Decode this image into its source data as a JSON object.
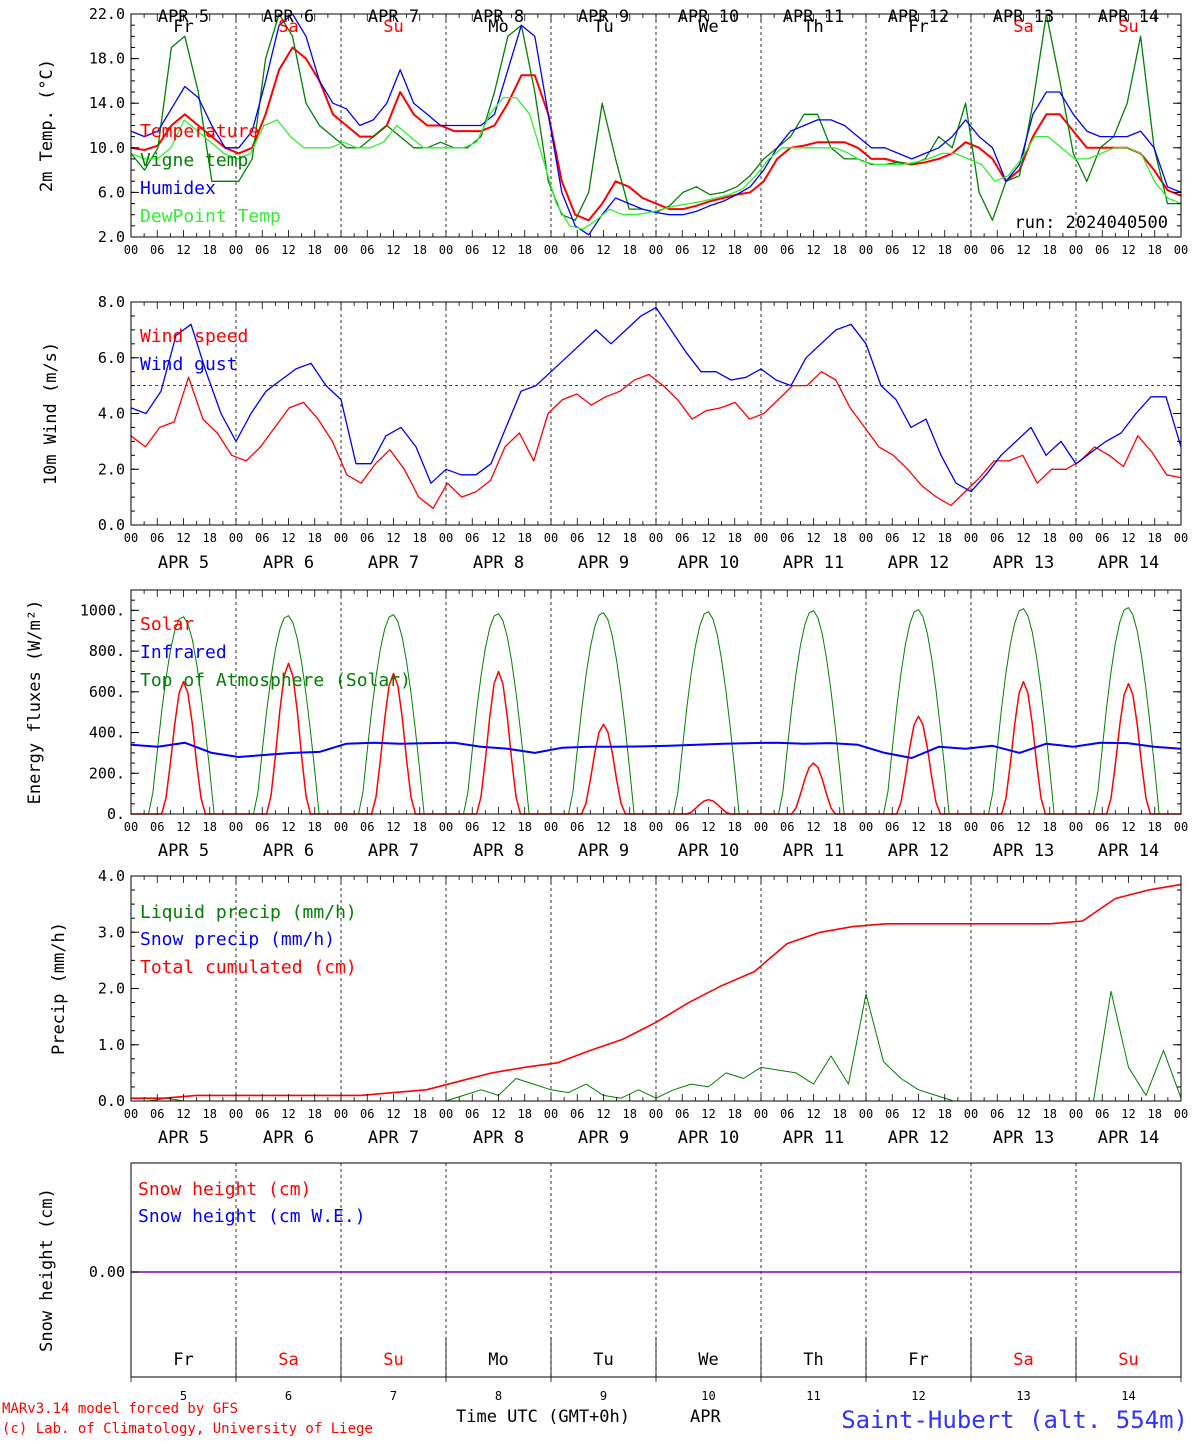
{
  "colors": {
    "axis": "#000000",
    "red": "#ff0000",
    "green": "#008000",
    "blue": "#0000ff",
    "lightgreen": "#33ee33",
    "purple": "#8000c0",
    "station": "#3333ff"
  },
  "days": {
    "names": [
      "Fr",
      "Sa",
      "Su",
      "Mo",
      "Tu",
      "We",
      "Th",
      "Fr",
      "Sa",
      "Su"
    ],
    "name_colors": [
      "axis",
      "red",
      "red",
      "axis",
      "axis",
      "axis",
      "axis",
      "axis",
      "red",
      "red"
    ],
    "dates": [
      "APR  5",
      "APR  6",
      "APR  7",
      "APR  8",
      "APR  9",
      "APR 10",
      "APR 11",
      "APR 12",
      "APR 13",
      "APR 14"
    ],
    "numbers": [
      "5",
      "6",
      "7",
      "8",
      "9",
      "10",
      "11",
      "12",
      "13",
      "14"
    ],
    "hour_labels": [
      "00",
      "06",
      "12",
      "18"
    ],
    "end_label": "00"
  },
  "footer": {
    "model_line": "MARv3.14 model forced by GFS",
    "copyright_line": "(c) Lab. of Climatology, University of Liege",
    "time_axis_label": "Time UTC (GMT+0h)",
    "month_label": "APR",
    "station": "Saint-Hubert (alt. 554m)"
  },
  "chart_data": [
    {
      "type": "line",
      "ylabel": "2m Temp. (°C)",
      "ylim": [
        2,
        22
      ],
      "yticks": [
        2,
        6,
        10,
        14,
        18,
        22
      ],
      "ytick_labels": [
        "2.0",
        "6.0",
        "10.0",
        "14.0",
        "18.0",
        "22.0"
      ],
      "x_unit": "hours since Apr 5 00 UTC (3-hourly)",
      "run_label": "run: 2024040500",
      "series": [
        {
          "name": "Temperature",
          "color": "red",
          "values": [
            10,
            9.8,
            10.2,
            12,
            13,
            12,
            11,
            10,
            9.5,
            10,
            13,
            17,
            19,
            18,
            16,
            13,
            12,
            11,
            11,
            12,
            15,
            13,
            12,
            12,
            11.5,
            11.5,
            11.5,
            12,
            14,
            16.5,
            16.5,
            13,
            7,
            4,
            3.5,
            5,
            7,
            6.5,
            5.5,
            5,
            4.5,
            4.5,
            4.8,
            5.2,
            5.5,
            5.8,
            6,
            7,
            9,
            10,
            10.2,
            10.5,
            10.5,
            10.5,
            10,
            9,
            9,
            8.7,
            8.5,
            8.7,
            9,
            9.5,
            10.5,
            10,
            9,
            7,
            8,
            11,
            13,
            13,
            11.5,
            10,
            10,
            10,
            10,
            9.5,
            8,
            6.2,
            5.7
          ]
        },
        {
          "name": "Vigne temp",
          "color": "green",
          "values": [
            9.5,
            8,
            10,
            19,
            20,
            15,
            7,
            7,
            7,
            9,
            18,
            22,
            20,
            14,
            12,
            11,
            10,
            10,
            11,
            12,
            11,
            10,
            10,
            10.5,
            10,
            10,
            11,
            15,
            20,
            21,
            15,
            7,
            4,
            3.5,
            6,
            14,
            9,
            4.5,
            4.5,
            4.2,
            4.8,
            6,
            6.5,
            5.8,
            6,
            6.5,
            7.5,
            9,
            10,
            11,
            13,
            13,
            10,
            9,
            9,
            8.5,
            8.5,
            8.7,
            8.5,
            9,
            11,
            10,
            14,
            6,
            3.5,
            7,
            7.5,
            14,
            22,
            16,
            9.5,
            7,
            10,
            11,
            14,
            20,
            10,
            5,
            5
          ]
        },
        {
          "name": "Humidex",
          "color": "blue",
          "values": [
            11.5,
            11,
            11.5,
            13.5,
            15.5,
            14.5,
            12,
            10,
            10,
            11.5,
            16,
            21,
            22,
            20,
            16,
            14,
            13.5,
            12,
            12.5,
            14,
            17,
            14,
            13,
            12,
            12,
            12,
            12,
            13,
            17,
            21,
            20,
            13,
            6,
            3,
            2.2,
            4,
            5.5,
            5,
            4.5,
            4.2,
            4,
            4,
            4.3,
            4.8,
            5.2,
            5.8,
            6.5,
            8,
            10,
            11.5,
            12,
            12.5,
            12.5,
            12,
            11,
            10,
            10,
            9.5,
            9,
            9.5,
            10,
            11,
            12.5,
            11,
            10,
            7,
            8.5,
            13,
            15,
            15,
            13,
            11.5,
            11,
            11,
            11,
            11.5,
            10,
            6.5,
            6
          ]
        },
        {
          "name": "DewPoint Temp",
          "color": "lightgreen",
          "values": [
            9.5,
            9,
            9,
            10,
            12.5,
            11.5,
            10.5,
            9.5,
            9,
            9.5,
            12,
            12.5,
            11,
            10,
            10,
            10,
            10.5,
            10,
            10,
            10.5,
            12,
            11,
            10,
            10,
            10,
            10,
            10.5,
            13,
            14.5,
            14.5,
            13,
            9,
            5,
            3,
            2.7,
            3.5,
            4.5,
            4,
            4,
            4.2,
            4.5,
            4.8,
            5,
            5.2,
            5.5,
            5.8,
            6.3,
            7.5,
            9,
            10,
            10,
            10,
            10,
            10,
            9.5,
            8.8,
            8.5,
            8.5,
            8.5,
            8.7,
            9,
            9.5,
            9.5,
            9,
            8.5,
            7,
            7.5,
            9,
            11,
            11,
            10,
            9,
            9,
            9.5,
            10,
            10,
            9.5,
            7,
            5.5,
            5
          ]
        }
      ]
    },
    {
      "type": "line",
      "ylabel": "10m Wind (m/s)",
      "ylim": [
        0,
        8
      ],
      "yticks": [
        0,
        2,
        4,
        6,
        8
      ],
      "ytick_labels": [
        "0.0",
        "2.0",
        "4.0",
        "6.0",
        "8.0"
      ],
      "reference_line": 5,
      "series": [
        {
          "name": "Wind speed",
          "color": "red",
          "values": [
            3.2,
            2.8,
            3.5,
            3.7,
            5.3,
            3.8,
            3.3,
            2.5,
            2.3,
            2.8,
            3.5,
            4.2,
            4.4,
            3.8,
            3,
            1.8,
            1.5,
            2.2,
            2.7,
            2,
            1,
            0.6,
            1.5,
            1,
            1.2,
            1.6,
            2.8,
            3.3,
            2.3,
            4,
            4.5,
            4.7,
            4.3,
            4.6,
            4.8,
            5.2,
            5.4,
            5,
            4.5,
            3.8,
            4.1,
            4.2,
            4.4,
            3.8,
            4,
            4.5,
            5,
            5,
            5.5,
            5.2,
            4.2,
            3.5,
            2.8,
            2.5,
            2,
            1.4,
            1,
            0.7,
            1.2,
            1.7,
            2.3,
            2.3,
            2.5,
            1.5,
            2,
            2,
            2.3,
            2.8,
            2.5,
            2.1,
            3.2,
            2.6,
            1.8,
            1.7
          ]
        },
        {
          "name": "Wind gust",
          "color": "blue",
          "values": [
            4.2,
            4,
            4.8,
            6.8,
            7.2,
            5.5,
            4,
            3,
            4,
            4.8,
            5.2,
            5.6,
            5.8,
            5,
            4.5,
            2.2,
            2.2,
            3.2,
            3.5,
            2.8,
            1.5,
            2,
            1.8,
            1.8,
            2.2,
            3.5,
            4.8,
            5,
            5.5,
            6,
            6.5,
            7,
            6.5,
            7,
            7.5,
            7.8,
            7,
            6.2,
            5.5,
            5.5,
            5.2,
            5.3,
            5.6,
            5.2,
            5,
            6,
            6.5,
            7,
            7.2,
            6.5,
            5,
            4.5,
            3.5,
            3.8,
            2.5,
            1.5,
            1.2,
            1.8,
            2.5,
            3,
            3.5,
            2.5,
            3,
            2.2,
            2.6,
            3,
            3.3,
            4,
            4.6,
            4.6,
            2.8
          ]
        }
      ]
    },
    {
      "type": "line",
      "ylabel": "Energy fluxes (W/m²)",
      "ylim": [
        0,
        1100
      ],
      "yticks": [
        0,
        200,
        400,
        600,
        800,
        1000
      ],
      "ytick_labels": [
        "0.",
        "200.",
        "400.",
        "600.",
        "800.",
        "1000."
      ],
      "series": [
        {
          "name": "Solar",
          "color": "red",
          "peaks": [
            650,
            740,
            690,
            700,
            440,
            70,
            250,
            480,
            650,
            640
          ]
        },
        {
          "name": "Infrared",
          "color": "blue",
          "values": [
            340,
            330,
            350,
            300,
            280,
            290,
            300,
            305,
            345,
            350,
            345,
            348,
            350,
            330,
            320,
            300,
            325,
            330,
            330,
            332,
            335,
            340,
            345,
            348,
            350,
            345,
            348,
            340,
            300,
            275,
            330,
            320,
            335,
            300,
            345,
            330,
            350,
            348,
            330,
            320
          ]
        },
        {
          "name": "Top of Atmosphere (Solar)",
          "color": "green",
          "peaks": [
            970,
            975,
            980,
            985,
            990,
            995,
            1000,
            1005,
            1010,
            1015
          ]
        }
      ]
    },
    {
      "type": "line",
      "ylabel": "Precip (mm/h)",
      "ylim": [
        0,
        4
      ],
      "yticks": [
        0,
        1,
        2,
        3,
        4
      ],
      "ytick_labels": [
        "0.0",
        "1.0",
        "2.0",
        "3.0",
        "4.0"
      ],
      "series": [
        {
          "name": "Liquid precip (mm/h)",
          "color": "green",
          "values": [
            0,
            0,
            0.05,
            0,
            0,
            0,
            0,
            0,
            0,
            0,
            0,
            0,
            0,
            0,
            0,
            0,
            0,
            0,
            0,
            0.1,
            0.2,
            0.1,
            0.4,
            0.3,
            0.2,
            0.15,
            0.3,
            0.1,
            0.05,
            0.2,
            0.05,
            0.2,
            0.3,
            0.25,
            0.5,
            0.4,
            0.6,
            0.55,
            0.5,
            0.3,
            0.8,
            0.3,
            1.9,
            0.7,
            0.4,
            0.2,
            0.1,
            0,
            0,
            0,
            0,
            0,
            0,
            0,
            0,
            0,
            1.95,
            0.6,
            0.1,
            0.9,
            0.05
          ]
        },
        {
          "name": "Snow precip (mm/h)",
          "color": "blue",
          "values": [
            0,
            0
          ]
        },
        {
          "name": "Total cumulated (cm)",
          "color": "red",
          "values": [
            0.05,
            0.05,
            0.1,
            0.1,
            0.1,
            0.1,
            0.1,
            0.1,
            0.15,
            0.2,
            0.35,
            0.5,
            0.6,
            0.68,
            0.9,
            1.1,
            1.4,
            1.75,
            2.05,
            2.3,
            2.8,
            3.0,
            3.1,
            3.15,
            3.15,
            3.15,
            3.15,
            3.15,
            3.15,
            3.2,
            3.6,
            3.75,
            3.85
          ]
        }
      ]
    },
    {
      "type": "line",
      "ylabel": "Snow height (cm)",
      "ytick_labels": [
        "0.00"
      ],
      "series": [
        {
          "name": "Snow height (cm)",
          "color": "red",
          "values": [
            0,
            0
          ]
        },
        {
          "name": "Snow height (cm W.E.)",
          "color": "blue",
          "values": [
            0,
            0
          ]
        }
      ]
    }
  ]
}
